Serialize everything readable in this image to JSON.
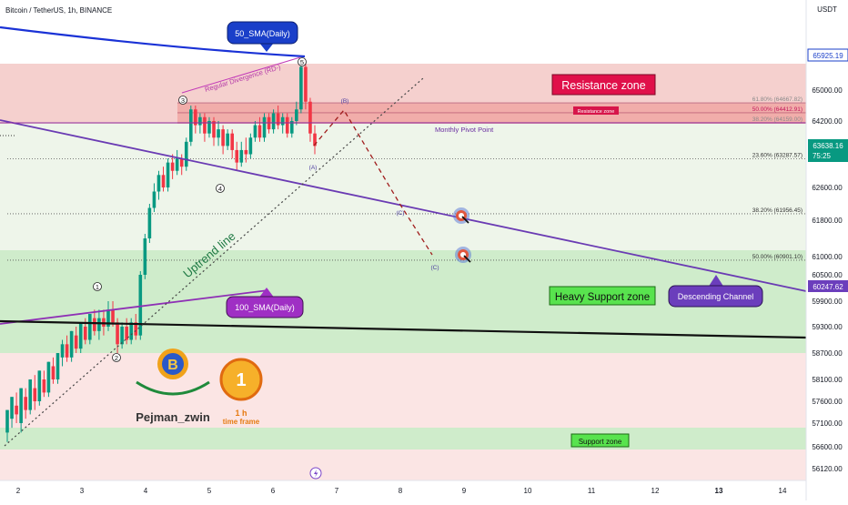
{
  "header": {
    "title": "Bitcoin / TetherUS, 1h, BINANCE",
    "currency": "USDT"
  },
  "chart_data": {
    "type": "candlestick",
    "symbol": "Bitcoin / TetherUS",
    "interval": "1h",
    "exchange": "BINANCE",
    "y_ticks": [
      65000,
      64200,
      62600,
      61800,
      61000,
      60500,
      59900,
      59300,
      58700,
      58100,
      57600,
      57100,
      56600,
      56120
    ],
    "x_ticks": [
      "2",
      "3",
      "4",
      "5",
      "6",
      "7",
      "8",
      "9",
      "10",
      "11",
      "12",
      "13",
      "14"
    ],
    "price_badges": {
      "top": "65925.19",
      "current": "63638.16",
      "countdown": "75:25",
      "bottom": "60247.62"
    },
    "fib_levels": [
      {
        "label": "61.80% (64667.82)",
        "value": 64667.82
      },
      {
        "label": "50.00% (64412.91)",
        "value": 64412.91
      },
      {
        "label": "38.20% (64159.00)",
        "value": 64159.0
      },
      {
        "label": "23.60% (63287.57)",
        "value": 63287.57
      },
      {
        "label": "38.20% (61956.45)",
        "value": 61956.45
      },
      {
        "label": "50.00% (60901.10)",
        "value": 60901.1
      }
    ],
    "zones": {
      "resistance": "Resistance zone",
      "resistance_small": "Resistance zone",
      "heavy_support": "Heavy Support zone",
      "support": "Support zone"
    },
    "annotations": {
      "sma50": "50_SMA(Daily)",
      "sma100": "100_SMA(Daily)",
      "divergence": "Regular Divergence (RD-)",
      "uptrend": "Uptrend line",
      "pivot": "Monthly Pivot Point",
      "descending_channel": "Descending Channel",
      "waves": [
        "1",
        "2",
        "3",
        "4",
        "5"
      ],
      "abc": [
        "(A)",
        "(B)",
        "(C)",
        "(C)"
      ]
    },
    "candles": [
      [
        56900,
        57400,
        56700,
        57200
      ],
      [
        57200,
        57700,
        57000,
        57500
      ],
      [
        57500,
        57300,
        57800,
        57100
      ],
      [
        57100,
        57900,
        56900,
        57700
      ],
      [
        57700,
        57400,
        57900,
        57200
      ],
      [
        57400,
        58100,
        57300,
        57900
      ],
      [
        57900,
        57600,
        58200,
        57400
      ],
      [
        57600,
        58300,
        57500,
        58100
      ],
      [
        58100,
        57800,
        58300,
        57700
      ],
      [
        57800,
        58500,
        57700,
        58400
      ],
      [
        58400,
        58100,
        58600,
        58000
      ],
      [
        58100,
        58700,
        58000,
        58600
      ],
      [
        58600,
        58900,
        58400,
        59000
      ],
      [
        58900,
        58600,
        59100,
        58500
      ],
      [
        58600,
        59200,
        58500,
        59100
      ],
      [
        59100,
        58800,
        59300,
        58700
      ],
      [
        58800,
        59400,
        58700,
        59300
      ],
      [
        59300,
        59000,
        59500,
        58900
      ],
      [
        59000,
        59600,
        58900,
        59500
      ],
      [
        59500,
        59200,
        59700,
        59100
      ],
      [
        59200,
        59500,
        59000,
        59700
      ],
      [
        59500,
        59300,
        59700,
        59100
      ],
      [
        59300,
        59700,
        59200,
        59900
      ],
      [
        59700,
        59400,
        59900,
        59300
      ],
      [
        59400,
        58900,
        59500,
        58700
      ],
      [
        58900,
        59300,
        58800,
        59400
      ],
      [
        59300,
        59000,
        59500,
        58900
      ],
      [
        59000,
        59400,
        58900,
        59500
      ],
      [
        59400,
        59100,
        59600,
        59000
      ],
      [
        59100,
        60500,
        59000,
        60600
      ],
      [
        60500,
        61400,
        60400,
        61500
      ],
      [
        61400,
        62100,
        61300,
        62200
      ],
      [
        62100,
        62500,
        62000,
        62700
      ],
      [
        62500,
        62900,
        62300,
        63000
      ],
      [
        62900,
        62600,
        63100,
        62500
      ],
      [
        62600,
        63200,
        62500,
        63300
      ],
      [
        63200,
        63000,
        63400,
        62800
      ],
      [
        63000,
        63300,
        62900,
        63500
      ],
      [
        63300,
        63100,
        63400,
        62900
      ],
      [
        63100,
        63700,
        63000,
        63800
      ],
      [
        63700,
        64500,
        63600,
        64600
      ],
      [
        64500,
        64100,
        64600,
        63900
      ],
      [
        64100,
        64300,
        63900,
        64400
      ],
      [
        64300,
        63900,
        64400,
        63700
      ],
      [
        63900,
        64200,
        63800,
        64300
      ],
      [
        64200,
        63800,
        64300,
        63600
      ],
      [
        63800,
        64000,
        63600,
        64200
      ],
      [
        64000,
        63600,
        64100,
        63400
      ],
      [
        63600,
        63900,
        63500,
        64000
      ],
      [
        63900,
        63500,
        64000,
        63300
      ],
      [
        63500,
        63200,
        63700,
        63000
      ],
      [
        63200,
        63500,
        63100,
        63700
      ],
      [
        63500,
        63400,
        63800,
        63200
      ],
      [
        63400,
        63800,
        63300,
        63900
      ],
      [
        63800,
        64100,
        63700,
        64200
      ],
      [
        64100,
        63800,
        64300,
        63700
      ],
      [
        63800,
        64300,
        63700,
        64400
      ],
      [
        64300,
        64000,
        64400,
        63900
      ],
      [
        64000,
        64400,
        63900,
        64500
      ],
      [
        64400,
        64100,
        64600,
        64000
      ],
      [
        64100,
        64300,
        63900,
        64400
      ],
      [
        64300,
        63900,
        64400,
        63800
      ],
      [
        63900,
        64200,
        63800,
        64300
      ],
      [
        64200,
        64500,
        64100,
        64700
      ],
      [
        64500,
        65600,
        64400,
        65800
      ],
      [
        65600,
        64700,
        65700,
        64500
      ],
      [
        64700,
        63900,
        64800,
        63700
      ],
      [
        63900,
        63600,
        64100,
        63400
      ]
    ]
  }
}
